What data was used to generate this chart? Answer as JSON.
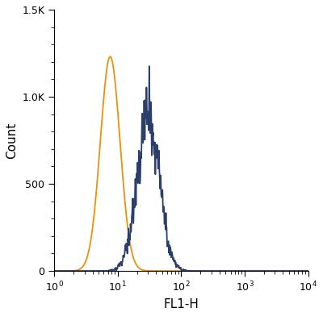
{
  "title": "",
  "xlabel": "FL1-H",
  "ylabel": "Count",
  "xlim": [
    1.0,
    10000.0
  ],
  "ylim": [
    0,
    1500
  ],
  "yticks": [
    0,
    500,
    1000,
    1500
  ],
  "ytick_labels": [
    "0",
    "500",
    "1.0K",
    "1.5K"
  ],
  "orange_color": "#E8920A",
  "blue_color": "#2C3E6B",
  "orange_peak_log": 0.88,
  "orange_sigma_log": 0.155,
  "orange_height": 1230,
  "blue_peak_log": 1.48,
  "blue_sigma_log": 0.175,
  "blue_height": 870,
  "blue_noise_scale": 0.1,
  "blue_noise_seed": 42,
  "background_color": "#ffffff",
  "linewidth": 1.3,
  "xlabel_fontsize": 11,
  "ylabel_fontsize": 11,
  "tick_fontsize": 9
}
